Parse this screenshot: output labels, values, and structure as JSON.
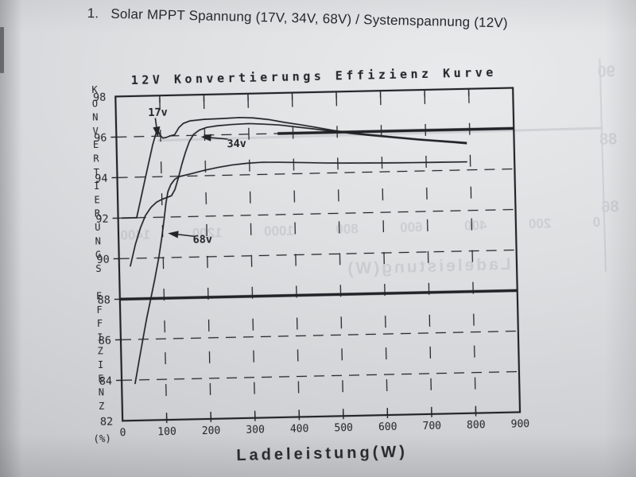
{
  "photo": {
    "heading_number": "1.",
    "heading_text": "Solar MPPT Spannung (17V, 34V, 68V) / Systemspannung (12V)"
  },
  "colors": {
    "ink": "#232327",
    "paper": "#d9dbde"
  },
  "chart_data": {
    "type": "line",
    "title": "12V Konvertierungs Effizienz Kurve",
    "xlabel": "Ladeleistung(W)",
    "ylabel": "KONVERTIERUNGS EFFIZIENZ (%)",
    "ylabel_letters": [
      "K",
      "O",
      "N",
      "V",
      "E",
      "R",
      "T",
      "I",
      "E",
      "R",
      "U",
      "N",
      "G",
      "S",
      "",
      "E",
      "F",
      "F",
      "I",
      "Z",
      "I",
      "E",
      "N",
      "Z"
    ],
    "ylabel_unit": "(%)",
    "xlim": [
      0,
      900
    ],
    "ylim": [
      82,
      98
    ],
    "xticks": [
      0,
      100,
      200,
      300,
      400,
      500,
      600,
      700,
      800,
      900
    ],
    "yticks": [
      82,
      84,
      86,
      88,
      90,
      92,
      94,
      96,
      98
    ],
    "grid": "dashed",
    "legend_position": "inline-arrows",
    "reference_lines": [
      {
        "y": 88,
        "from": 0,
        "to": 900,
        "style": "bold"
      },
      {
        "y": 96,
        "from": 365,
        "to": 900,
        "style": "bold"
      }
    ],
    "series": [
      {
        "name": "17v",
        "points": [
          [
            8,
            92.0
          ],
          [
            42,
            92.0
          ],
          [
            52,
            92.9
          ],
          [
            62,
            93.8
          ],
          [
            72,
            94.7
          ],
          [
            82,
            95.6
          ],
          [
            90,
            96.15
          ],
          [
            94,
            96.3
          ],
          [
            99,
            96.05
          ],
          [
            105,
            95.9
          ],
          [
            112,
            95.92
          ],
          [
            122,
            96.0
          ],
          [
            132,
            96.05
          ],
          [
            142,
            96.4
          ],
          [
            152,
            96.6
          ],
          [
            168,
            96.72
          ],
          [
            200,
            96.78
          ],
          [
            240,
            96.8
          ],
          [
            280,
            96.83
          ],
          [
            310,
            96.8
          ],
          [
            345,
            96.7
          ],
          [
            380,
            96.55
          ],
          [
            420,
            96.4
          ],
          [
            455,
            96.25
          ],
          [
            490,
            96.1
          ],
          [
            525,
            95.98
          ],
          [
            560,
            95.88
          ],
          [
            600,
            95.78
          ],
          [
            640,
            95.68
          ],
          [
            680,
            95.58
          ],
          [
            720,
            95.5
          ],
          [
            760,
            95.42
          ],
          [
            793,
            95.35
          ]
        ]
      },
      {
        "name": "34v",
        "points": [
          [
            25,
            89.6
          ],
          [
            38,
            90.7
          ],
          [
            50,
            91.5
          ],
          [
            62,
            92.1
          ],
          [
            75,
            92.5
          ],
          [
            88,
            92.75
          ],
          [
            100,
            92.88
          ],
          [
            112,
            92.97
          ],
          [
            122,
            93.05
          ],
          [
            130,
            93.35
          ],
          [
            138,
            93.9
          ],
          [
            147,
            94.6
          ],
          [
            156,
            95.2
          ],
          [
            165,
            95.7
          ],
          [
            175,
            96.05
          ],
          [
            188,
            96.25
          ],
          [
            205,
            96.38
          ],
          [
            230,
            96.45
          ],
          [
            265,
            96.5
          ],
          [
            300,
            96.52
          ],
          [
            335,
            96.48
          ],
          [
            370,
            96.42
          ],
          [
            410,
            96.3
          ],
          [
            450,
            96.18
          ],
          [
            490,
            96.05
          ],
          [
            530,
            95.93
          ],
          [
            570,
            95.82
          ],
          [
            610,
            95.72
          ],
          [
            650,
            95.62
          ],
          [
            690,
            95.52
          ],
          [
            730,
            95.44
          ],
          [
            765,
            95.37
          ],
          [
            793,
            95.3
          ]
        ]
      },
      {
        "name": "68v",
        "points": [
          [
            30,
            83.8
          ],
          [
            40,
            84.9
          ],
          [
            50,
            86.0
          ],
          [
            60,
            87.05
          ],
          [
            70,
            88.0
          ],
          [
            80,
            88.95
          ],
          [
            90,
            90.0
          ],
          [
            98,
            91.0
          ],
          [
            104,
            91.9
          ],
          [
            109,
            92.7
          ],
          [
            114,
            93.25
          ],
          [
            121,
            93.6
          ],
          [
            130,
            93.85
          ],
          [
            140,
            93.98
          ],
          [
            155,
            94.05
          ],
          [
            175,
            94.15
          ],
          [
            200,
            94.28
          ],
          [
            230,
            94.4
          ],
          [
            260,
            94.5
          ],
          [
            295,
            94.57
          ],
          [
            330,
            94.6
          ],
          [
            370,
            94.58
          ],
          [
            420,
            94.54
          ],
          [
            470,
            94.5
          ],
          [
            520,
            94.47
          ],
          [
            570,
            94.45
          ],
          [
            620,
            94.43
          ],
          [
            670,
            94.42
          ],
          [
            720,
            94.41
          ],
          [
            793,
            94.4
          ]
        ]
      }
    ],
    "annotations": [
      {
        "label": "17v",
        "label_at": [
          95,
          97.15
        ],
        "arrow_from": [
          89,
          96.9
        ],
        "arrow_to": [
          94,
          95.95
        ]
      },
      {
        "label": "34v",
        "label_at": [
          272,
          95.52
        ],
        "arrow_from": [
          252,
          95.78
        ],
        "arrow_to": [
          191,
          95.92
        ]
      },
      {
        "label": "68v",
        "label_at": [
          190,
          90.85
        ],
        "arrow_from": [
          172,
          91.02
        ],
        "arrow_to": [
          112,
          91.2
        ]
      }
    ]
  },
  "bleedthrough": {
    "y_labels": [
      "90",
      "88",
      "86"
    ],
    "x_labels": [
      "0",
      "200",
      "400",
      "600",
      "800",
      "1000",
      "1200",
      "1400"
    ],
    "axis_label": "Ladeleistung(W)"
  }
}
